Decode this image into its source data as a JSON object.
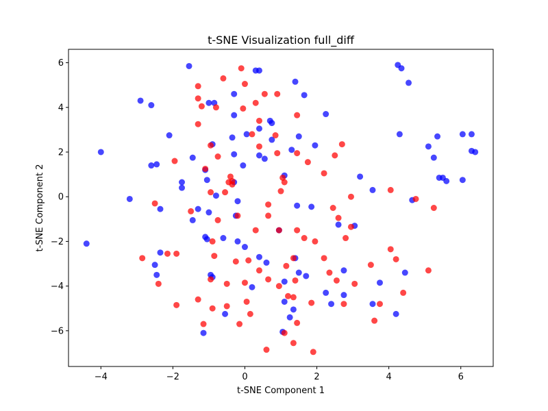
{
  "chart_data": {
    "type": "scatter",
    "title": "t-SNE Visualization full_diff",
    "xlabel": "t-SNE Component 1",
    "ylabel": "t-SNE Component 2",
    "xlim": [
      -4.9,
      6.9
    ],
    "ylim": [
      -7.6,
      6.6
    ],
    "xticks": [
      -4,
      -2,
      0,
      2,
      4,
      6
    ],
    "yticks": [
      -6,
      -4,
      -2,
      0,
      2,
      4,
      6
    ],
    "xtick_labels": [
      "−4",
      "−2",
      "0",
      "2",
      "4",
      "6"
    ],
    "ytick_labels": [
      "−6",
      "−4",
      "−2",
      "0",
      "2",
      "4",
      "6"
    ],
    "grid": false,
    "series": [
      {
        "color": "#0000ff",
        "points": [
          [
            -4.4,
            -2.1
          ],
          [
            -4.0,
            2.0
          ],
          [
            -3.2,
            -0.1
          ],
          [
            -2.9,
            4.3
          ],
          [
            -2.6,
            4.1
          ],
          [
            -2.6,
            1.4
          ],
          [
            -2.45,
            1.45
          ],
          [
            -2.5,
            -3.05
          ],
          [
            -2.45,
            -3.5
          ],
          [
            -2.35,
            -0.55
          ],
          [
            -2.35,
            -2.5
          ],
          [
            -2.1,
            2.75
          ],
          [
            -1.75,
            0.65
          ],
          [
            -1.75,
            0.4
          ],
          [
            -1.55,
            5.85
          ],
          [
            -1.45,
            1.75
          ],
          [
            -1.45,
            -1.05
          ],
          [
            -1.3,
            -0.55
          ],
          [
            -1.15,
            -6.1
          ],
          [
            -1.1,
            1.2
          ],
          [
            -1.1,
            -1.8
          ],
          [
            -1.05,
            -1.9
          ],
          [
            -1.05,
            0.75
          ],
          [
            -1.0,
            4.2
          ],
          [
            -1.0,
            -0.7
          ],
          [
            -0.95,
            -3.5
          ],
          [
            -0.9,
            -3.6
          ],
          [
            -0.9,
            2.35
          ],
          [
            -0.85,
            4.2
          ],
          [
            -0.8,
            0.05
          ],
          [
            -0.6,
            -1.85
          ],
          [
            -0.55,
            -5.25
          ],
          [
            -0.35,
            2.65
          ],
          [
            -0.3,
            4.6
          ],
          [
            -0.3,
            3.65
          ],
          [
            -0.3,
            1.9
          ],
          [
            -0.3,
            0.65
          ],
          [
            -0.25,
            -0.85
          ],
          [
            -0.2,
            -2.0
          ],
          [
            -0.2,
            -0.2
          ],
          [
            -0.05,
            1.4
          ],
          [
            0.0,
            -2.25
          ],
          [
            0.05,
            2.8
          ],
          [
            0.2,
            -4.05
          ],
          [
            0.3,
            5.65
          ],
          [
            0.4,
            5.65
          ],
          [
            0.4,
            3.05
          ],
          [
            0.4,
            1.85
          ],
          [
            0.4,
            -2.7
          ],
          [
            0.55,
            1.7
          ],
          [
            0.6,
            -2.95
          ],
          [
            0.7,
            3.4
          ],
          [
            0.75,
            3.3
          ],
          [
            0.75,
            2.55
          ],
          [
            0.95,
            -1.5
          ],
          [
            1.05,
            -6.05
          ],
          [
            1.1,
            -4.7
          ],
          [
            1.1,
            -3.8
          ],
          [
            1.1,
            0.95
          ],
          [
            1.25,
            -5.4
          ],
          [
            1.3,
            2.1
          ],
          [
            1.35,
            -5.05
          ],
          [
            1.4,
            5.15
          ],
          [
            1.4,
            -2.75
          ],
          [
            1.45,
            -0.4
          ],
          [
            1.5,
            2.7
          ],
          [
            1.5,
            -3.4
          ],
          [
            1.65,
            4.55
          ],
          [
            1.7,
            -3.55
          ],
          [
            1.85,
            -0.45
          ],
          [
            1.95,
            2.3
          ],
          [
            2.25,
            3.7
          ],
          [
            2.25,
            -4.3
          ],
          [
            2.4,
            -4.8
          ],
          [
            2.6,
            -1.25
          ],
          [
            2.75,
            -4.4
          ],
          [
            2.75,
            -3.3
          ],
          [
            3.05,
            -1.3
          ],
          [
            3.2,
            0.9
          ],
          [
            3.55,
            0.3
          ],
          [
            3.55,
            -4.8
          ],
          [
            3.75,
            -3.85
          ],
          [
            4.2,
            -5.25
          ],
          [
            4.25,
            5.9
          ],
          [
            4.3,
            2.8
          ],
          [
            4.35,
            5.75
          ],
          [
            4.45,
            -3.4
          ],
          [
            4.55,
            5.1
          ],
          [
            4.65,
            -0.15
          ],
          [
            5.1,
            2.25
          ],
          [
            5.25,
            1.75
          ],
          [
            5.35,
            2.7
          ],
          [
            5.4,
            0.85
          ],
          [
            5.5,
            0.85
          ],
          [
            5.6,
            0.7
          ],
          [
            6.05,
            2.8
          ],
          [
            6.05,
            0.75
          ],
          [
            6.3,
            2.8
          ],
          [
            6.3,
            2.05
          ],
          [
            6.4,
            2.0
          ]
        ]
      },
      {
        "color": "#ff0000",
        "points": [
          [
            -2.85,
            -2.75
          ],
          [
            -2.5,
            -0.3
          ],
          [
            -2.4,
            -3.9
          ],
          [
            -2.15,
            -2.55
          ],
          [
            -1.95,
            1.6
          ],
          [
            -1.9,
            -2.55
          ],
          [
            -1.9,
            -4.85
          ],
          [
            -1.5,
            -0.65
          ],
          [
            -1.3,
            4.95
          ],
          [
            -1.3,
            4.4
          ],
          [
            -1.3,
            3.25
          ],
          [
            -1.3,
            -4.6
          ],
          [
            -1.2,
            4.05
          ],
          [
            -1.15,
            -5.7
          ],
          [
            -1.1,
            1.25
          ],
          [
            -0.95,
            -3.7
          ],
          [
            -0.95,
            2.3
          ],
          [
            -0.95,
            0.2
          ],
          [
            -0.9,
            -2.0
          ],
          [
            -0.9,
            -5.0
          ],
          [
            -0.85,
            -2.65
          ],
          [
            -0.8,
            4.0
          ],
          [
            -0.75,
            1.8
          ],
          [
            -0.75,
            -1.05
          ],
          [
            -0.6,
            5.3
          ],
          [
            -0.55,
            0.2
          ],
          [
            -0.5,
            -3.9
          ],
          [
            -0.5,
            -4.9
          ],
          [
            -0.45,
            0.65
          ],
          [
            -0.4,
            0.9
          ],
          [
            -0.35,
            0.55
          ],
          [
            -0.35,
            0.7
          ],
          [
            -0.25,
            -2.9
          ],
          [
            -0.2,
            -0.85
          ],
          [
            -0.15,
            -5.7
          ],
          [
            -0.1,
            5.75
          ],
          [
            -0.05,
            3.95
          ],
          [
            0.0,
            5.05
          ],
          [
            0.0,
            -3.85
          ],
          [
            0.05,
            -4.7
          ],
          [
            0.1,
            -2.85
          ],
          [
            0.15,
            -5.25
          ],
          [
            0.2,
            2.8
          ],
          [
            0.3,
            4.2
          ],
          [
            0.3,
            -1.5
          ],
          [
            0.4,
            3.4
          ],
          [
            0.4,
            2.25
          ],
          [
            0.4,
            -3.3
          ],
          [
            0.55,
            4.6
          ],
          [
            0.6,
            -6.85
          ],
          [
            0.65,
            -3.7
          ],
          [
            0.65,
            -0.35
          ],
          [
            0.65,
            -0.85
          ],
          [
            0.85,
            2.75
          ],
          [
            0.9,
            4.6
          ],
          [
            0.9,
            1.95
          ],
          [
            0.95,
            -1.5
          ],
          [
            0.95,
            -4.0
          ],
          [
            1.0,
            0.25
          ],
          [
            1.05,
            0.85
          ],
          [
            1.1,
            0.65
          ],
          [
            1.1,
            -6.1
          ],
          [
            1.15,
            -3.1
          ],
          [
            1.2,
            -4.45
          ],
          [
            1.35,
            -4.5
          ],
          [
            1.35,
            -6.55
          ],
          [
            1.35,
            -2.75
          ],
          [
            1.4,
            -3.75
          ],
          [
            1.45,
            1.95
          ],
          [
            1.45,
            3.65
          ],
          [
            1.45,
            -1.5
          ],
          [
            1.45,
            -5.65
          ],
          [
            1.65,
            -1.85
          ],
          [
            1.75,
            1.55
          ],
          [
            1.85,
            -4.75
          ],
          [
            1.9,
            -6.95
          ],
          [
            1.95,
            -2.0
          ],
          [
            2.2,
            1.05
          ],
          [
            2.2,
            -2.75
          ],
          [
            2.35,
            -3.4
          ],
          [
            2.45,
            -0.5
          ],
          [
            2.5,
            1.85
          ],
          [
            2.55,
            -3.75
          ],
          [
            2.6,
            -0.95
          ],
          [
            2.7,
            2.35
          ],
          [
            2.75,
            -4.8
          ],
          [
            2.8,
            -1.85
          ],
          [
            2.95,
            0.0
          ],
          [
            2.95,
            -1.35
          ],
          [
            3.05,
            -3.9
          ],
          [
            3.5,
            -3.05
          ],
          [
            3.6,
            -5.55
          ],
          [
            3.75,
            -4.8
          ],
          [
            4.05,
            -2.35
          ],
          [
            4.05,
            0.3
          ],
          [
            4.2,
            -2.8
          ],
          [
            4.4,
            -4.3
          ],
          [
            4.75,
            -0.1
          ],
          [
            5.1,
            -3.3
          ],
          [
            5.25,
            -0.5
          ]
        ]
      }
    ]
  }
}
